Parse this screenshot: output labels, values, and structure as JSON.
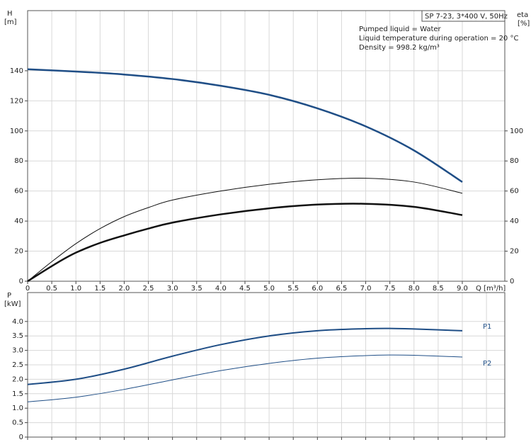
{
  "chart_data": [
    {
      "type": "line",
      "title": "SP 7-23, 3*400 V, 50Hz",
      "annotations": [
        "Pumped liquid = Water",
        "Liquid temperature during operation = 20 °C",
        "Density = 998.2 kg/m³"
      ],
      "ylabel": "H",
      "yunit": "[m]",
      "y2label": "eta",
      "y2unit": "[%]",
      "xlabel": "Q [m³/h]",
      "xlim": [
        0,
        9.88
      ],
      "ylim": [
        0,
        180
      ],
      "y2lim": [
        0,
        180
      ],
      "xticks": [
        0,
        0.5,
        {
          "value": 1,
          "label": "1.0"
        },
        1.5,
        {
          "value": 2,
          "label": "2.0"
        },
        2.5,
        {
          "value": 3,
          "label": "3.0"
        },
        3.5,
        {
          "value": 4,
          "label": "4.0"
        },
        4.5,
        {
          "value": 5,
          "label": "5.0"
        },
        5.5,
        {
          "value": 6,
          "label": "6.0"
        },
        6.5,
        {
          "value": 7,
          "label": "7.0"
        },
        7.5,
        {
          "value": 8,
          "label": "8.0"
        },
        8.5,
        {
          "value": 9,
          "label": "9.0"
        }
      ],
      "yticks": [
        0,
        20,
        40,
        60,
        80,
        100,
        120,
        140
      ],
      "y2ticks": [
        0,
        20,
        40,
        60,
        80,
        100
      ],
      "grid": true,
      "series": [
        {
          "color": "#1f4e86",
          "width": 2.5,
          "x": [
            0,
            1,
            2,
            3,
            4,
            5,
            6,
            7,
            8,
            9
          ],
          "values": [
            141,
            139.5,
            137.5,
            134.5,
            130,
            124,
            115,
            103,
            87,
            66
          ]
        },
        {
          "color": "#111111",
          "width": 1,
          "axis": "y2",
          "x": [
            0,
            0.5,
            1,
            1.5,
            2,
            2.5,
            3,
            4,
            5,
            6,
            7,
            8,
            9
          ],
          "values": [
            0,
            13,
            25,
            35,
            43,
            49,
            54,
            60,
            64.5,
            67.5,
            68.5,
            66,
            58.5
          ]
        },
        {
          "color": "#111111",
          "width": 2.5,
          "axis": "y2",
          "x": [
            0,
            0.6,
            1,
            1.5,
            2,
            2.5,
            3,
            4,
            5,
            6,
            7,
            8,
            9
          ],
          "values": [
            0,
            12,
            19,
            25.5,
            30.5,
            35,
            39,
            44.5,
            48.5,
            51,
            51.5,
            49.5,
            44
          ]
        }
      ]
    },
    {
      "type": "line",
      "ylabel": "P",
      "yunit": "[kW]",
      "xlim": [
        0,
        9.88
      ],
      "ylim": [
        0,
        5
      ],
      "xticks": [
        0,
        0.5,
        1,
        1.5,
        2,
        2.5,
        3,
        3.5,
        4,
        4.5,
        5,
        5.5,
        6,
        6.5,
        7,
        7.5,
        8,
        8.5,
        9,
        9.5
      ],
      "yticks": [
        0,
        0.5,
        {
          "value": 1,
          "label": "1.0"
        },
        1.5,
        {
          "value": 2,
          "label": "2.0"
        },
        2.5,
        {
          "value": 3,
          "label": "3.0"
        },
        3.5,
        {
          "value": 4,
          "label": "4.0"
        }
      ],
      "grid": true,
      "series": [
        {
          "name": "P1",
          "color": "#1f4e86",
          "width": 2,
          "x": [
            0,
            1,
            2,
            3,
            4,
            5,
            6,
            7,
            7.5,
            8,
            9
          ],
          "values": [
            1.82,
            2.0,
            2.35,
            2.8,
            3.2,
            3.5,
            3.68,
            3.75,
            3.76,
            3.74,
            3.68
          ]
        },
        {
          "name": "P2",
          "color": "#1f4e86",
          "width": 1,
          "x": [
            0,
            1,
            2,
            3,
            4,
            5,
            6,
            7,
            7.5,
            8,
            9
          ],
          "values": [
            1.22,
            1.38,
            1.65,
            1.98,
            2.3,
            2.55,
            2.73,
            2.82,
            2.84,
            2.83,
            2.77
          ]
        }
      ]
    }
  ]
}
